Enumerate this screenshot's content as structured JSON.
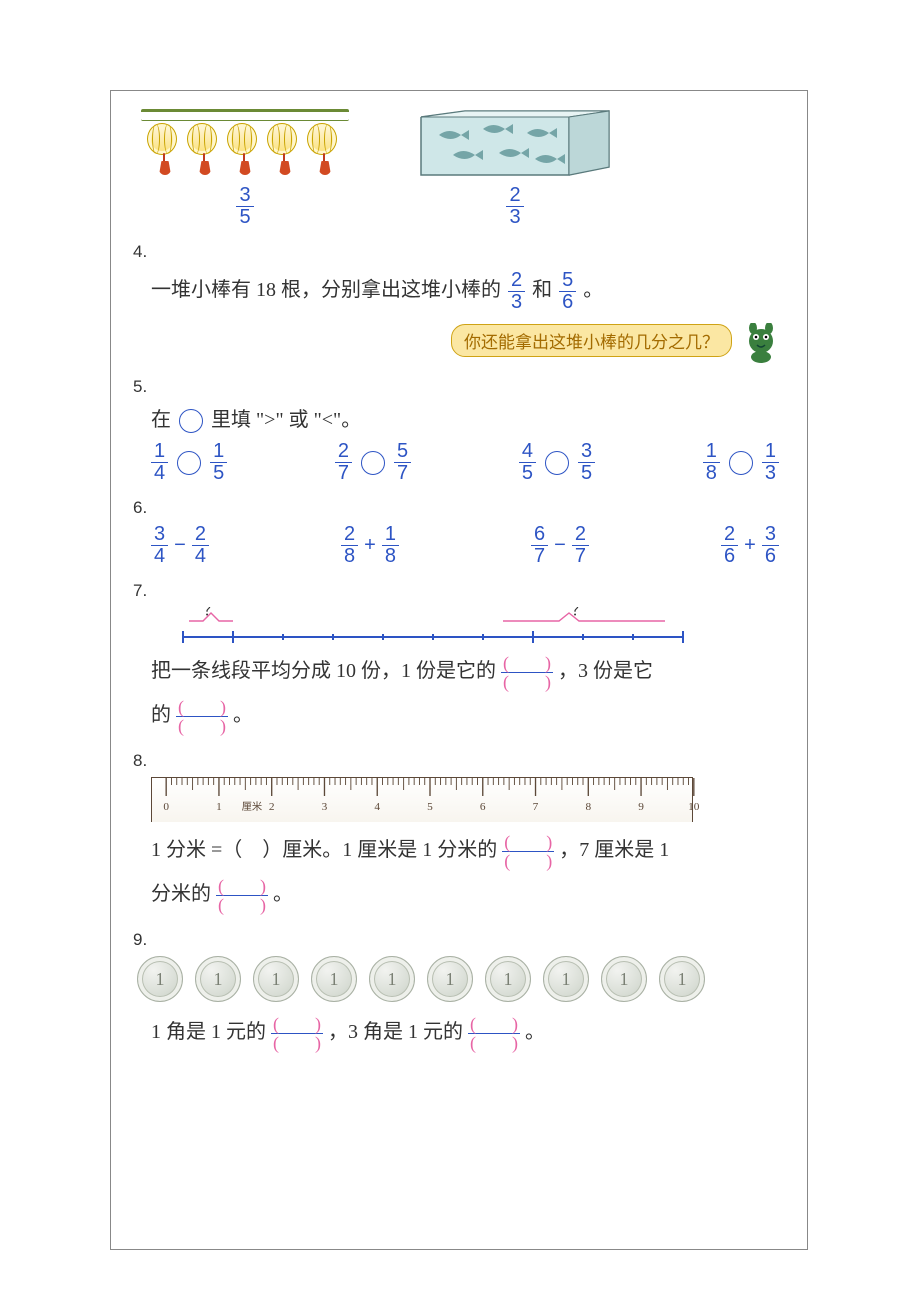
{
  "colors": {
    "blue": "#2d54c4",
    "pink": "#e765a5",
    "amberBox": "#fbe7a3",
    "amberBorder": "#cfa315",
    "ruler": "#5c4838"
  },
  "q3": {
    "leftFrac": {
      "num": "3",
      "den": "5"
    },
    "rightFrac": {
      "num": "2",
      "den": "3"
    }
  },
  "q4": {
    "num": "4.",
    "line": "一堆小棒有 18 根，分别拿出这堆小棒的",
    "and": "和",
    "period": "。",
    "frac1": {
      "num": "2",
      "den": "3"
    },
    "frac2": {
      "num": "5",
      "den": "6"
    },
    "prompt": "你还能拿出这堆小棒的几分之几？"
  },
  "q5": {
    "num": "5.",
    "instr_a": "在",
    "instr_b": "里填 \">\" 或 \"<\"。",
    "pairs": [
      {
        "a": {
          "num": "1",
          "den": "4"
        },
        "b": {
          "num": "1",
          "den": "5"
        }
      },
      {
        "a": {
          "num": "2",
          "den": "7"
        },
        "b": {
          "num": "5",
          "den": "7"
        }
      },
      {
        "a": {
          "num": "4",
          "den": "5"
        },
        "b": {
          "num": "3",
          "den": "5"
        }
      },
      {
        "a": {
          "num": "1",
          "den": "8"
        },
        "b": {
          "num": "1",
          "den": "3"
        }
      }
    ]
  },
  "q6": {
    "num": "6.",
    "exprs": [
      {
        "a": {
          "num": "3",
          "den": "4"
        },
        "op": "−",
        "b": {
          "num": "2",
          "den": "4"
        }
      },
      {
        "a": {
          "num": "2",
          "den": "8"
        },
        "op": "+",
        "b": {
          "num": "1",
          "den": "8"
        }
      },
      {
        "a": {
          "num": "6",
          "den": "7"
        },
        "op": "−",
        "b": {
          "num": "2",
          "den": "7"
        }
      },
      {
        "a": {
          "num": "2",
          "den": "6"
        },
        "op": "+",
        "b": {
          "num": "3",
          "den": "6"
        }
      }
    ]
  },
  "q7": {
    "num": "7.",
    "qmark": "？",
    "line_a": "把一条线段平均分成 10 份，1 份是它的",
    "line_b": "，3 份是它",
    "line_c": "的",
    "period": "。",
    "blank": {
      "num": "(　　)",
      "den": "(　　)"
    }
  },
  "q8": {
    "num": "8.",
    "ruler_labels": [
      "0",
      "1",
      "2",
      "3",
      "4",
      "5",
      "6",
      "7",
      "8",
      "9",
      "10"
    ],
    "ruler_unit": "厘米",
    "line_a": "1 分米 =（　）厘米。1 厘米是 1 分米的",
    "line_b": "，7 厘米是 1",
    "line_c": "分米的",
    "period": "。",
    "blank": {
      "num": "(　　)",
      "den": "(　　)"
    }
  },
  "q9": {
    "num": "9.",
    "coin_label": "1",
    "coin_count": 10,
    "line_a": "1 角是 1 元的",
    "line_b": "，3 角是 1 元的",
    "period": "。",
    "blank": {
      "num": "(　　)",
      "den": "(　　)"
    }
  }
}
